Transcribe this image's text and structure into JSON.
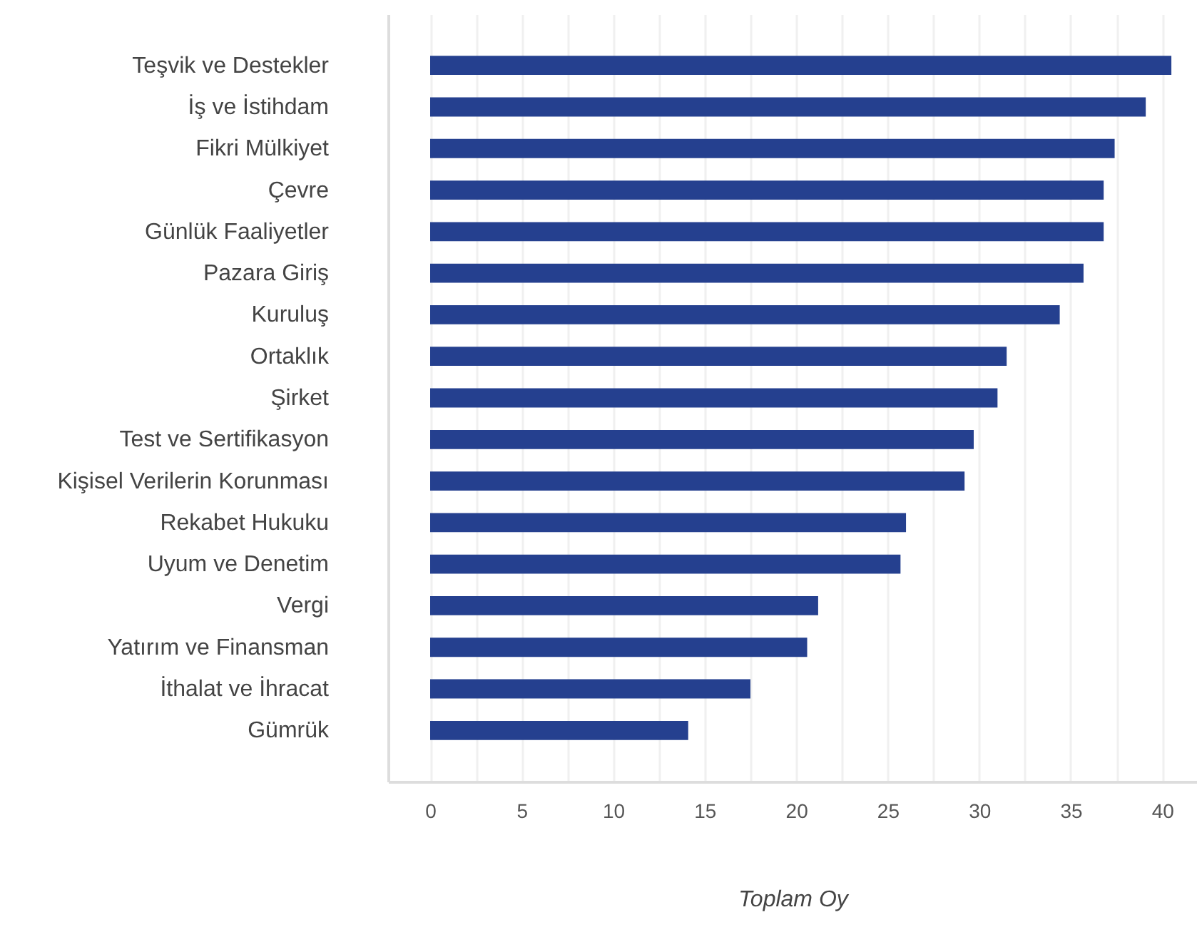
{
  "chart_data": {
    "type": "bar",
    "orientation": "horizontal",
    "xlabel": "Toplam Oy",
    "categories": [
      "Teşvik ve Destekler",
      "İş ve İstihdam",
      "Fikri Mülkiyet",
      "Çevre",
      "Günlük Faaliyetler",
      "Pazara Giriş",
      "Kuruluş",
      "Ortaklık",
      "Şirket",
      "Test ve Sertifikasyon",
      "Kişisel Verilerin Korunması",
      "Rekabet Hukuku",
      "Uyum ve Denetim",
      "Vergi",
      "Yatırım ve Finansman",
      "İthalat ve İhracat",
      "Gümrük"
    ],
    "values": [
      40.5,
      39.1,
      37.4,
      36.8,
      36.8,
      35.7,
      34.4,
      31.5,
      31.0,
      29.7,
      29.2,
      26.0,
      25.7,
      21.2,
      20.6,
      17.5,
      14.1
    ],
    "color": "#25408f",
    "xlim": [
      -2.3,
      41.9
    ],
    "xticks": [
      0,
      {
        "value": 2.5,
        "label": null
      },
      5,
      {
        "value": 7.5,
        "label": null
      },
      10,
      {
        "value": 12.5,
        "label": null
      },
      15,
      {
        "value": 17.5,
        "label": null
      },
      20,
      {
        "value": 22.5,
        "label": null
      },
      25,
      {
        "value": 27.5,
        "label": null
      },
      30,
      {
        "value": 32.5,
        "label": null
      },
      35,
      {
        "value": 37.5,
        "label": null
      },
      40
    ],
    "grid": "x"
  }
}
